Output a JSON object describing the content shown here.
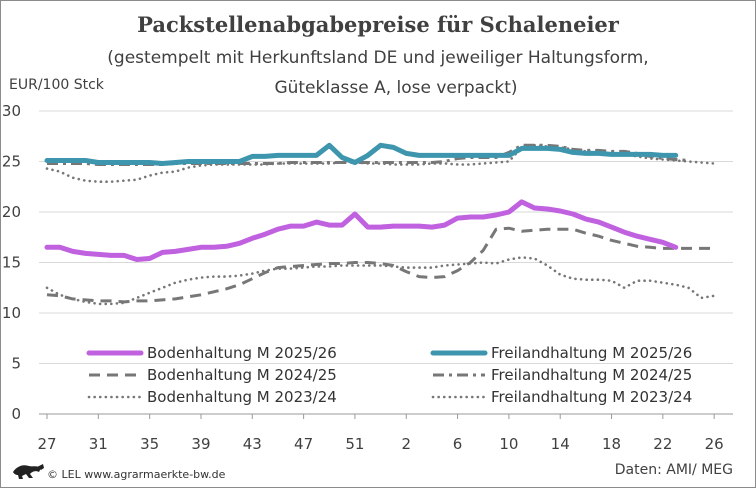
{
  "chart_data": {
    "type": "line",
    "title": "Packstellenabgabepreise für Schaleneier",
    "subtitle_lines": [
      "(gestempelt mit Herkunftsland DE und jeweiliger Haltungsform,",
      "Güteklasse A, lose verpackt)"
    ],
    "ylabel": "EUR/100 Stck",
    "ylim": [
      0,
      30
    ],
    "y_ticks": [
      "0",
      "5",
      "10",
      "15",
      "20",
      "25",
      "30"
    ],
    "x_ticks": [
      "27",
      "31",
      "35",
      "39",
      "43",
      "47",
      "51",
      "2",
      "6",
      "10",
      "14",
      "18",
      "22",
      "26"
    ],
    "x_week_count": 53,
    "grid": "horizontal",
    "legend_placement": "bottom, two columns",
    "series": [
      {
        "name": "Bodenhaltung M 2025/26",
        "color": "#c061e0",
        "style": "solid-thick",
        "points": [
          [
            0,
            16.5
          ],
          [
            1,
            16.5
          ],
          [
            2,
            16.1
          ],
          [
            3,
            15.9
          ],
          [
            4,
            15.8
          ],
          [
            5,
            15.7
          ],
          [
            6,
            15.7
          ],
          [
            7,
            15.3
          ],
          [
            8,
            15.4
          ],
          [
            9,
            16.0
          ],
          [
            10,
            16.1
          ],
          [
            11,
            16.3
          ],
          [
            12,
            16.5
          ],
          [
            13,
            16.5
          ],
          [
            14,
            16.6
          ],
          [
            15,
            16.9
          ],
          [
            16,
            17.4
          ],
          [
            17,
            17.8
          ],
          [
            18,
            18.3
          ],
          [
            19,
            18.6
          ],
          [
            20,
            18.6
          ],
          [
            21,
            19.0
          ],
          [
            22,
            18.7
          ],
          [
            23,
            18.7
          ],
          [
            24,
            19.8
          ],
          [
            25,
            18.5
          ],
          [
            26,
            18.5
          ],
          [
            27,
            18.6
          ],
          [
            28,
            18.6
          ],
          [
            29,
            18.6
          ],
          [
            30,
            18.5
          ],
          [
            31,
            18.7
          ],
          [
            32,
            19.4
          ],
          [
            33,
            19.5
          ],
          [
            34,
            19.5
          ],
          [
            35,
            19.7
          ],
          [
            36,
            20.0
          ],
          [
            37,
            21.0
          ],
          [
            38,
            20.4
          ],
          [
            39,
            20.3
          ],
          [
            40,
            20.1
          ],
          [
            41,
            19.8
          ],
          [
            42,
            19.3
          ],
          [
            43,
            19.0
          ],
          [
            44,
            18.5
          ],
          [
            45,
            18.0
          ],
          [
            46,
            17.6
          ],
          [
            47,
            17.3
          ],
          [
            48,
            17.0
          ],
          [
            49,
            16.5
          ]
        ]
      },
      {
        "name": "Freilandhaltung M 2025/26",
        "color": "#3d96ad",
        "style": "solid-thick",
        "points": [
          [
            0,
            25.1
          ],
          [
            1,
            25.1
          ],
          [
            2,
            25.1
          ],
          [
            3,
            25.1
          ],
          [
            4,
            24.9
          ],
          [
            5,
            24.9
          ],
          [
            6,
            24.9
          ],
          [
            7,
            24.9
          ],
          [
            8,
            24.9
          ],
          [
            9,
            24.8
          ],
          [
            10,
            24.9
          ],
          [
            11,
            25.0
          ],
          [
            12,
            25.0
          ],
          [
            13,
            25.0
          ],
          [
            14,
            25.0
          ],
          [
            15,
            25.0
          ],
          [
            16,
            25.5
          ],
          [
            17,
            25.5
          ],
          [
            18,
            25.6
          ],
          [
            19,
            25.6
          ],
          [
            20,
            25.6
          ],
          [
            21,
            25.6
          ],
          [
            22,
            26.6
          ],
          [
            23,
            25.4
          ],
          [
            24,
            24.9
          ],
          [
            25,
            25.6
          ],
          [
            26,
            26.6
          ],
          [
            27,
            26.4
          ],
          [
            28,
            25.8
          ],
          [
            29,
            25.6
          ],
          [
            30,
            25.6
          ],
          [
            31,
            25.6
          ],
          [
            32,
            25.6
          ],
          [
            33,
            25.6
          ],
          [
            34,
            25.6
          ],
          [
            35,
            25.6
          ],
          [
            36,
            25.6
          ],
          [
            37,
            26.3
          ],
          [
            38,
            26.3
          ],
          [
            39,
            26.3
          ],
          [
            40,
            26.2
          ],
          [
            41,
            25.9
          ],
          [
            42,
            25.8
          ],
          [
            43,
            25.8
          ],
          [
            44,
            25.7
          ],
          [
            45,
            25.7
          ],
          [
            46,
            25.7
          ],
          [
            47,
            25.7
          ],
          [
            48,
            25.6
          ],
          [
            49,
            25.6
          ]
        ]
      },
      {
        "name": "Bodenhaltung M 2024/25",
        "color": "#777777",
        "style": "dashed",
        "points": [
          [
            0,
            11.8
          ],
          [
            1,
            11.7
          ],
          [
            2,
            11.4
          ],
          [
            3,
            11.3
          ],
          [
            4,
            11.2
          ],
          [
            5,
            11.2
          ],
          [
            6,
            11.1
          ],
          [
            7,
            11.2
          ],
          [
            8,
            11.2
          ],
          [
            9,
            11.3
          ],
          [
            10,
            11.4
          ],
          [
            11,
            11.6
          ],
          [
            12,
            11.8
          ],
          [
            13,
            12.1
          ],
          [
            14,
            12.4
          ],
          [
            15,
            12.8
          ],
          [
            16,
            13.4
          ],
          [
            17,
            14.0
          ],
          [
            18,
            14.5
          ],
          [
            19,
            14.6
          ],
          [
            20,
            14.7
          ],
          [
            21,
            14.8
          ],
          [
            22,
            14.9
          ],
          [
            23,
            14.9
          ],
          [
            24,
            15.0
          ],
          [
            25,
            15.0
          ],
          [
            26,
            14.9
          ],
          [
            27,
            14.7
          ],
          [
            28,
            14.1
          ],
          [
            29,
            13.6
          ],
          [
            30,
            13.5
          ],
          [
            31,
            13.6
          ],
          [
            32,
            14.2
          ],
          [
            33,
            15.0
          ],
          [
            34,
            16.2
          ],
          [
            35,
            18.3
          ],
          [
            36,
            18.4
          ],
          [
            37,
            18.1
          ],
          [
            38,
            18.2
          ],
          [
            39,
            18.3
          ],
          [
            40,
            18.3
          ],
          [
            41,
            18.3
          ],
          [
            42,
            17.9
          ],
          [
            43,
            17.6
          ],
          [
            44,
            17.2
          ],
          [
            45,
            16.9
          ],
          [
            46,
            16.6
          ],
          [
            47,
            16.5
          ],
          [
            48,
            16.4
          ],
          [
            49,
            16.4
          ],
          [
            50,
            16.4
          ],
          [
            51,
            16.4
          ],
          [
            52,
            16.4
          ]
        ]
      },
      {
        "name": "Freilandhaltung M 2024/25",
        "color": "#777777",
        "style": "dashdot",
        "points": [
          [
            0,
            24.8
          ],
          [
            1,
            24.8
          ],
          [
            2,
            24.8
          ],
          [
            3,
            24.8
          ],
          [
            4,
            24.7
          ],
          [
            5,
            24.7
          ],
          [
            6,
            24.7
          ],
          [
            7,
            24.7
          ],
          [
            8,
            24.7
          ],
          [
            9,
            24.7
          ],
          [
            10,
            24.8
          ],
          [
            11,
            24.8
          ],
          [
            12,
            24.8
          ],
          [
            13,
            24.8
          ],
          [
            14,
            24.8
          ],
          [
            15,
            24.8
          ],
          [
            16,
            24.8
          ],
          [
            17,
            24.8
          ],
          [
            18,
            24.8
          ],
          [
            19,
            24.9
          ],
          [
            20,
            24.9
          ],
          [
            21,
            24.9
          ],
          [
            22,
            24.9
          ],
          [
            23,
            24.9
          ],
          [
            24,
            24.9
          ],
          [
            25,
            24.9
          ],
          [
            26,
            24.9
          ],
          [
            27,
            24.9
          ],
          [
            28,
            24.9
          ],
          [
            29,
            24.9
          ],
          [
            30,
            24.9
          ],
          [
            31,
            25.0
          ],
          [
            32,
            25.3
          ],
          [
            33,
            25.4
          ],
          [
            34,
            25.4
          ],
          [
            35,
            25.4
          ],
          [
            36,
            25.9
          ],
          [
            37,
            26.6
          ],
          [
            38,
            26.6
          ],
          [
            39,
            26.6
          ],
          [
            40,
            26.5
          ],
          [
            41,
            26.2
          ],
          [
            42,
            26.1
          ],
          [
            43,
            26.1
          ],
          [
            44,
            26.0
          ],
          [
            45,
            26.0
          ],
          [
            46,
            25.8
          ],
          [
            47,
            25.5
          ],
          [
            48,
            25.3
          ],
          [
            49,
            25.2
          ],
          [
            50,
            25.1
          ]
        ]
      },
      {
        "name": "Bodenhaltung M 2023/24",
        "color": "#777777",
        "style": "dotted",
        "points": [
          [
            0,
            12.5
          ],
          [
            1,
            11.8
          ],
          [
            2,
            11.4
          ],
          [
            3,
            11.1
          ],
          [
            4,
            10.9
          ],
          [
            5,
            10.9
          ],
          [
            6,
            11.0
          ],
          [
            7,
            11.5
          ],
          [
            8,
            12.0
          ],
          [
            9,
            12.5
          ],
          [
            10,
            13.0
          ],
          [
            11,
            13.3
          ],
          [
            12,
            13.5
          ],
          [
            13,
            13.6
          ],
          [
            14,
            13.6
          ],
          [
            15,
            13.7
          ],
          [
            16,
            13.9
          ],
          [
            17,
            14.2
          ],
          [
            18,
            14.4
          ],
          [
            19,
            14.4
          ],
          [
            20,
            14.5
          ],
          [
            21,
            14.6
          ],
          [
            22,
            14.6
          ],
          [
            23,
            14.7
          ],
          [
            24,
            14.7
          ],
          [
            25,
            14.7
          ],
          [
            26,
            14.7
          ],
          [
            27,
            14.6
          ],
          [
            28,
            14.5
          ],
          [
            29,
            14.5
          ],
          [
            30,
            14.5
          ],
          [
            31,
            14.7
          ],
          [
            32,
            14.8
          ],
          [
            33,
            14.9
          ],
          [
            34,
            15.0
          ],
          [
            35,
            14.9
          ],
          [
            36,
            15.3
          ],
          [
            37,
            15.5
          ],
          [
            38,
            15.4
          ],
          [
            39,
            14.7
          ],
          [
            40,
            13.8
          ],
          [
            41,
            13.4
          ],
          [
            42,
            13.3
          ],
          [
            43,
            13.3
          ],
          [
            44,
            13.2
          ],
          [
            45,
            12.5
          ],
          [
            46,
            13.2
          ],
          [
            47,
            13.2
          ],
          [
            48,
            13.0
          ],
          [
            49,
            12.8
          ],
          [
            50,
            12.5
          ],
          [
            51,
            11.5
          ],
          [
            52,
            11.7
          ]
        ]
      },
      {
        "name": "Freilandhaltung M 2023/24",
        "color": "#777777",
        "style": "dotted",
        "points": [
          [
            0,
            24.3
          ],
          [
            1,
            24.0
          ],
          [
            2,
            23.4
          ],
          [
            3,
            23.1
          ],
          [
            4,
            23.0
          ],
          [
            5,
            23.0
          ],
          [
            6,
            23.1
          ],
          [
            7,
            23.2
          ],
          [
            8,
            23.6
          ],
          [
            9,
            23.9
          ],
          [
            10,
            24.0
          ],
          [
            11,
            24.4
          ],
          [
            12,
            24.6
          ],
          [
            13,
            24.7
          ],
          [
            14,
            24.7
          ],
          [
            15,
            24.7
          ],
          [
            16,
            24.7
          ],
          [
            17,
            24.7
          ],
          [
            18,
            24.8
          ],
          [
            19,
            24.8
          ],
          [
            20,
            24.8
          ],
          [
            21,
            24.8
          ],
          [
            22,
            24.8
          ],
          [
            23,
            24.9
          ],
          [
            24,
            24.9
          ],
          [
            25,
            24.8
          ],
          [
            26,
            24.8
          ],
          [
            27,
            24.7
          ],
          [
            28,
            24.7
          ],
          [
            29,
            24.7
          ],
          [
            30,
            24.8
          ],
          [
            31,
            24.8
          ],
          [
            32,
            24.7
          ],
          [
            33,
            24.7
          ],
          [
            34,
            24.8
          ],
          [
            35,
            24.9
          ],
          [
            36,
            25.0
          ],
          [
            37,
            26.4
          ],
          [
            38,
            26.6
          ],
          [
            39,
            26.5
          ],
          [
            40,
            26.4
          ],
          [
            41,
            26.2
          ],
          [
            42,
            26.0
          ],
          [
            43,
            25.9
          ],
          [
            44,
            25.8
          ],
          [
            45,
            25.7
          ],
          [
            46,
            25.5
          ],
          [
            47,
            25.3
          ],
          [
            48,
            25.2
          ],
          [
            49,
            25.1
          ],
          [
            50,
            25.0
          ],
          [
            51,
            24.9
          ],
          [
            52,
            24.8
          ]
        ]
      }
    ]
  },
  "footer": {
    "credit": "© LEL www.agrarmaerkte-bw.de",
    "source": "Daten: AMI/ MEG",
    "logo_icon": "lion-logo-icon"
  }
}
